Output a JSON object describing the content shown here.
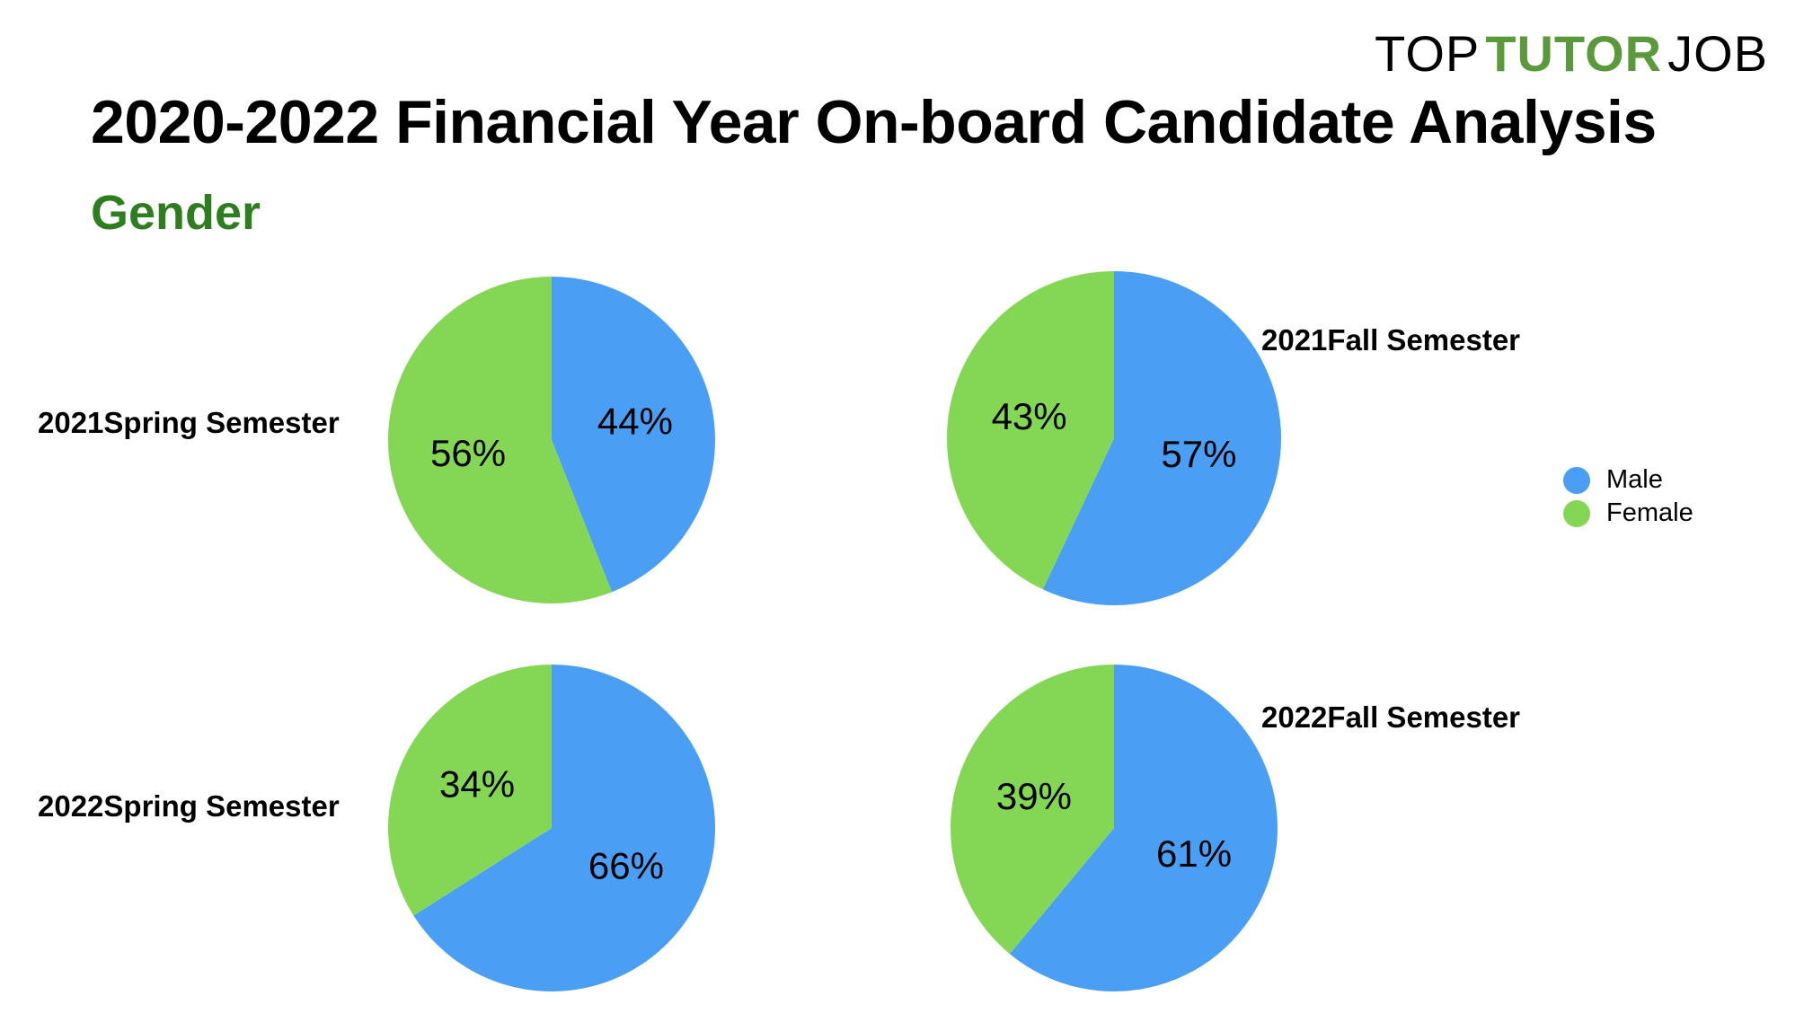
{
  "logo": {
    "part1": "TOP",
    "part2": "TUTOR",
    "part3": "JOB",
    "color1": "#000000",
    "color2": "#5a9a3a",
    "color3": "#000000"
  },
  "title": "2020-2022 Financial Year On-board Candidate Analysis",
  "subtitle": "Gender",
  "colors": {
    "subtitle": "#2e7d1e",
    "male": "#4a9ff5",
    "female": "#84d655"
  },
  "legend": [
    {
      "label": "Male",
      "color": "#4a9ff5"
    },
    {
      "label": "Female",
      "color": "#84d655"
    }
  ],
  "chart_data": [
    {
      "type": "pie",
      "title": "2021Spring Semester",
      "categories": [
        "Male",
        "Female"
      ],
      "values": [
        44,
        56
      ],
      "labels": [
        "44%",
        "56%"
      ]
    },
    {
      "type": "pie",
      "title": "2021Fall Semester",
      "categories": [
        "Male",
        "Female"
      ],
      "values": [
        57,
        43
      ],
      "labels": [
        "57%",
        "43%"
      ]
    },
    {
      "type": "pie",
      "title": "2022Spring Semester",
      "categories": [
        "Male",
        "Female"
      ],
      "values": [
        66,
        34
      ],
      "labels": [
        "66%",
        "34%"
      ]
    },
    {
      "type": "pie",
      "title": "2022Fall Semester",
      "categories": [
        "Male",
        "Female"
      ],
      "values": [
        61,
        39
      ],
      "labels": [
        "61%",
        "39%"
      ]
    }
  ]
}
